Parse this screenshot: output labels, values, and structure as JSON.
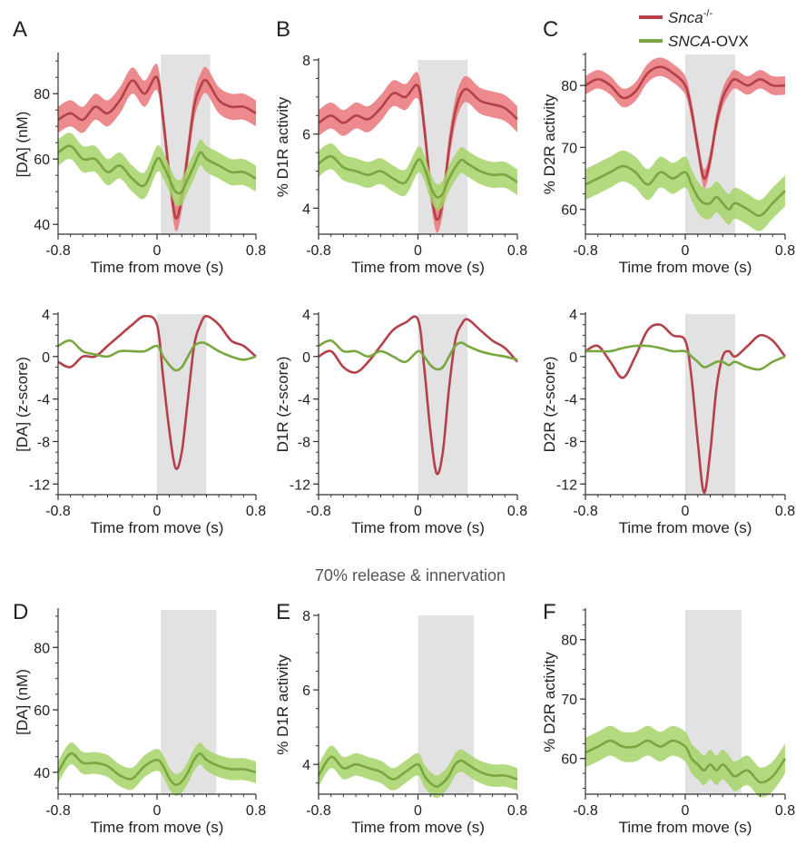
{
  "legend": {
    "items": [
      {
        "italic": "Snca",
        "sup": "-/-",
        "rest": "",
        "color": "#b4414a"
      },
      {
        "italic": "SNCA",
        "sup": "",
        "rest": "-OVX",
        "color": "#7aa640"
      }
    ]
  },
  "section_label": "70% release & innervation",
  "colors": {
    "red_line": "#b4414a",
    "red_band": "#e9767a",
    "green_line": "#7aa640",
    "green_band": "#a7d36a",
    "shade": "#e2e2e2"
  },
  "chart_data": [
    {
      "id": "A",
      "label": "A",
      "type": "line",
      "xlabel": "Time from move (s)",
      "ylabel": "[DA] (nM)",
      "xlim": [
        -0.8,
        0.8
      ],
      "ylim": [
        37,
        92
      ],
      "xticks": [
        -0.8,
        0,
        0.8
      ],
      "xtick_labels": [
        "-0.8",
        "0",
        "0.8"
      ],
      "yticks": [
        40,
        60,
        80
      ],
      "ytick_labels": [
        "40",
        "60",
        "80"
      ],
      "shade": [
        0.03,
        0.43
      ],
      "series": [
        {
          "color_key": "red",
          "band": 4,
          "x": [
            -0.8,
            -0.7,
            -0.6,
            -0.5,
            -0.4,
            -0.3,
            -0.2,
            -0.1,
            0,
            0.05,
            0.1,
            0.15,
            0.2,
            0.25,
            0.3,
            0.35,
            0.4,
            0.5,
            0.6,
            0.7,
            0.8
          ],
          "y": [
            72,
            74,
            72,
            76,
            74,
            78,
            84,
            80,
            85,
            72,
            55,
            42,
            48,
            62,
            76,
            82,
            84,
            78,
            76,
            76,
            74
          ]
        },
        {
          "color_key": "green",
          "band": 4,
          "x": [
            -0.8,
            -0.7,
            -0.6,
            -0.5,
            -0.4,
            -0.3,
            -0.2,
            -0.1,
            0,
            0.05,
            0.1,
            0.15,
            0.2,
            0.25,
            0.3,
            0.35,
            0.4,
            0.5,
            0.6,
            0.7,
            0.8
          ],
          "y": [
            62,
            64,
            60,
            60,
            56,
            58,
            54,
            52,
            60,
            58,
            54,
            50,
            50,
            54,
            58,
            62,
            60,
            58,
            56,
            56,
            54
          ]
        }
      ]
    },
    {
      "id": "B",
      "label": "B",
      "type": "line",
      "xlabel": "Time from move (s)",
      "ylabel": "% D1R activity",
      "xlim": [
        -0.8,
        0.8
      ],
      "ylim": [
        3.3,
        8
      ],
      "xticks": [
        -0.8,
        0,
        0.8
      ],
      "xtick_labels": [
        "-0.8",
        "0",
        "0.8"
      ],
      "yticks": [
        4,
        6,
        8
      ],
      "ytick_labels": [
        "4",
        "6",
        "8"
      ],
      "shade": [
        0,
        0.4
      ],
      "series": [
        {
          "color_key": "red",
          "band": 0.35,
          "x": [
            -0.8,
            -0.7,
            -0.6,
            -0.5,
            -0.4,
            -0.3,
            -0.2,
            -0.1,
            0,
            0.05,
            0.1,
            0.15,
            0.2,
            0.25,
            0.3,
            0.35,
            0.4,
            0.5,
            0.6,
            0.7,
            0.8
          ],
          "y": [
            6.3,
            6.5,
            6.3,
            6.5,
            6.4,
            6.7,
            7.1,
            7.0,
            7.3,
            6.2,
            4.6,
            3.7,
            4.2,
            5.6,
            6.6,
            7.1,
            7.2,
            6.9,
            6.8,
            6.7,
            6.4
          ]
        },
        {
          "color_key": "green",
          "band": 0.35,
          "x": [
            -0.8,
            -0.7,
            -0.6,
            -0.5,
            -0.4,
            -0.3,
            -0.2,
            -0.1,
            0,
            0.05,
            0.1,
            0.15,
            0.2,
            0.25,
            0.3,
            0.35,
            0.4,
            0.5,
            0.6,
            0.7,
            0.8
          ],
          "y": [
            5.2,
            5.4,
            5.1,
            5.0,
            4.9,
            5.0,
            4.8,
            4.7,
            5.3,
            5.1,
            4.6,
            4.3,
            4.4,
            4.8,
            5.1,
            5.3,
            5.2,
            5.0,
            4.9,
            4.9,
            4.7
          ]
        }
      ]
    },
    {
      "id": "C",
      "label": "C",
      "type": "line",
      "xlabel": "Time from move (s)",
      "ylabel": "% D2R activity",
      "xlim": [
        -0.8,
        0.8
      ],
      "ylim": [
        56,
        85
      ],
      "xticks": [
        -0.8,
        0,
        0.8
      ],
      "xtick_labels": [
        "-0.8",
        "0",
        "0.8"
      ],
      "yticks": [
        60,
        70,
        80
      ],
      "ytick_labels": [
        "60",
        "70",
        "80"
      ],
      "shade": [
        0,
        0.4
      ],
      "series": [
        {
          "color_key": "red",
          "band": 1.5,
          "x": [
            -0.8,
            -0.7,
            -0.6,
            -0.5,
            -0.4,
            -0.3,
            -0.2,
            -0.1,
            0,
            0.05,
            0.1,
            0.15,
            0.2,
            0.25,
            0.3,
            0.35,
            0.4,
            0.5,
            0.6,
            0.7,
            0.8
          ],
          "y": [
            80,
            81,
            80,
            78,
            79,
            82,
            83,
            82,
            80,
            76,
            70,
            65,
            68,
            74,
            78,
            80,
            81,
            80,
            81,
            80,
            80
          ]
        },
        {
          "color_key": "green",
          "band": 2.5,
          "x": [
            -0.8,
            -0.7,
            -0.6,
            -0.5,
            -0.4,
            -0.3,
            -0.2,
            -0.1,
            0,
            0.05,
            0.1,
            0.15,
            0.2,
            0.25,
            0.3,
            0.35,
            0.4,
            0.5,
            0.6,
            0.7,
            0.8
          ],
          "y": [
            64,
            65,
            66,
            67,
            66,
            64,
            66,
            65,
            66,
            64,
            62,
            61,
            61,
            62,
            61,
            60,
            61,
            60,
            59,
            61,
            63
          ]
        }
      ]
    },
    {
      "id": "A2",
      "label": "",
      "type": "line",
      "xlabel": "Time from move (s)",
      "ylabel": "[DA] (z-score)",
      "xlim": [
        -0.8,
        0.8
      ],
      "ylim": [
        -13,
        4
      ],
      "xticks": [
        -0.8,
        0,
        0.8
      ],
      "xtick_labels": [
        "-0.8",
        "0",
        "0.8"
      ],
      "yticks": [
        -12,
        -8,
        -4,
        0,
        4
      ],
      "ytick_labels": [
        "-12",
        "-8",
        "-4",
        "0",
        "4"
      ],
      "shade": [
        0,
        0.4
      ],
      "series": [
        {
          "color_key": "red",
          "band": 0,
          "x": [
            -0.8,
            -0.7,
            -0.6,
            -0.5,
            -0.4,
            -0.3,
            -0.2,
            -0.1,
            0,
            0.05,
            0.1,
            0.15,
            0.2,
            0.25,
            0.3,
            0.35,
            0.4,
            0.5,
            0.6,
            0.7,
            0.8
          ],
          "y": [
            -0.5,
            -1.0,
            0.0,
            0.0,
            1.0,
            2.0,
            3.0,
            3.8,
            3.0,
            -2.0,
            -7.0,
            -10.5,
            -9.0,
            -4.0,
            1.0,
            3.0,
            3.8,
            3.0,
            1.5,
            1.0,
            0.0
          ]
        },
        {
          "color_key": "green",
          "band": 0,
          "x": [
            -0.8,
            -0.7,
            -0.6,
            -0.5,
            -0.4,
            -0.3,
            -0.2,
            -0.1,
            0,
            0.05,
            0.1,
            0.15,
            0.2,
            0.25,
            0.3,
            0.35,
            0.4,
            0.5,
            0.6,
            0.7,
            0.8
          ],
          "y": [
            1.0,
            1.5,
            0.5,
            0.2,
            0.0,
            0.5,
            0.5,
            0.5,
            1.0,
            0.0,
            -0.8,
            -1.3,
            -1.0,
            0.0,
            1.0,
            1.3,
            1.2,
            0.5,
            0.0,
            -0.3,
            0.0
          ]
        }
      ]
    },
    {
      "id": "B2",
      "label": "",
      "type": "line",
      "xlabel": "Time from move (s)",
      "ylabel": "D1R (z-score)",
      "xlim": [
        -0.8,
        0.8
      ],
      "ylim": [
        -13,
        4
      ],
      "xticks": [
        -0.8,
        0,
        0.8
      ],
      "xtick_labels": [
        "-0.8",
        "0",
        "0.8"
      ],
      "yticks": [
        -12,
        -8,
        -4,
        0,
        4
      ],
      "ytick_labels": [
        "-12",
        "-8",
        "-4",
        "0",
        "4"
      ],
      "shade": [
        0,
        0.4
      ],
      "series": [
        {
          "color_key": "red",
          "band": 0,
          "x": [
            -0.8,
            -0.7,
            -0.6,
            -0.5,
            -0.4,
            -0.3,
            -0.2,
            -0.1,
            0,
            0.05,
            0.1,
            0.15,
            0.2,
            0.25,
            0.3,
            0.35,
            0.4,
            0.5,
            0.6,
            0.7,
            0.8
          ],
          "y": [
            0.0,
            0.5,
            -1.0,
            -1.5,
            -0.5,
            1.0,
            2.5,
            3.2,
            3.5,
            -1.0,
            -7.0,
            -11.0,
            -9.0,
            -3.0,
            1.5,
            3.0,
            3.5,
            2.5,
            1.5,
            0.8,
            -0.5
          ]
        },
        {
          "color_key": "green",
          "band": 0,
          "x": [
            -0.8,
            -0.7,
            -0.6,
            -0.5,
            -0.4,
            -0.3,
            -0.2,
            -0.1,
            0,
            0.05,
            0.1,
            0.15,
            0.2,
            0.25,
            0.3,
            0.35,
            0.4,
            0.5,
            0.6,
            0.7,
            0.8
          ],
          "y": [
            1.0,
            1.5,
            0.5,
            0.5,
            0.0,
            0.5,
            0.0,
            -0.5,
            0.5,
            0.0,
            -0.8,
            -1.2,
            -1.0,
            0.0,
            1.0,
            1.3,
            1.0,
            0.5,
            0.2,
            0.0,
            -0.3
          ]
        }
      ]
    },
    {
      "id": "C2",
      "label": "",
      "type": "line",
      "xlabel": "Time from move (s)",
      "ylabel": "D2R (z-score)",
      "xlim": [
        -0.8,
        0.8
      ],
      "ylim": [
        -13,
        4
      ],
      "xticks": [
        -0.8,
        0,
        0.8
      ],
      "xtick_labels": [
        "-0.8",
        "0",
        "0.8"
      ],
      "yticks": [
        -12,
        -8,
        -4,
        0,
        4
      ],
      "ytick_labels": [
        "-12",
        "-8",
        "-4",
        "0",
        "4"
      ],
      "shade": [
        0,
        0.4
      ],
      "series": [
        {
          "color_key": "red",
          "band": 0,
          "x": [
            -0.8,
            -0.7,
            -0.6,
            -0.5,
            -0.4,
            -0.3,
            -0.2,
            -0.1,
            0,
            0.05,
            0.1,
            0.15,
            0.2,
            0.25,
            0.3,
            0.35,
            0.4,
            0.5,
            0.6,
            0.7,
            0.8
          ],
          "y": [
            0.5,
            1.0,
            -0.5,
            -2.0,
            0.0,
            2.5,
            3.0,
            2.0,
            1.5,
            -2.0,
            -8.0,
            -12.8,
            -9.0,
            -3.0,
            0.0,
            0.5,
            0.0,
            1.0,
            2.0,
            1.5,
            0.0
          ]
        },
        {
          "color_key": "green",
          "band": 0,
          "x": [
            -0.8,
            -0.7,
            -0.6,
            -0.5,
            -0.4,
            -0.3,
            -0.2,
            -0.1,
            0,
            0.05,
            0.1,
            0.15,
            0.2,
            0.25,
            0.3,
            0.35,
            0.4,
            0.5,
            0.6,
            0.7,
            0.8
          ],
          "y": [
            0.5,
            0.5,
            0.5,
            0.8,
            1.0,
            1.0,
            0.8,
            0.5,
            0.5,
            0.0,
            -0.5,
            -1.0,
            -0.8,
            -0.5,
            -0.5,
            -0.8,
            -0.5,
            -1.0,
            -1.2,
            -0.5,
            0.0
          ]
        }
      ]
    },
    {
      "id": "D",
      "label": "D",
      "type": "line",
      "xlabel": "Time from move (s)",
      "ylabel": "[DA] (nM)",
      "xlim": [
        -0.8,
        0.8
      ],
      "ylim": [
        33,
        92
      ],
      "xticks": [
        -0.8,
        0,
        0.8
      ],
      "xtick_labels": [
        "-0.8",
        "0",
        "0.8"
      ],
      "yticks": [
        40,
        60,
        80
      ],
      "ytick_labels": [
        "40",
        "60",
        "80"
      ],
      "shade": [
        0.03,
        0.48
      ],
      "series": [
        {
          "color_key": "green",
          "band": 3.5,
          "x": [
            -0.8,
            -0.7,
            -0.6,
            -0.5,
            -0.4,
            -0.3,
            -0.2,
            -0.1,
            0,
            0.05,
            0.1,
            0.15,
            0.2,
            0.25,
            0.3,
            0.35,
            0.4,
            0.5,
            0.6,
            0.7,
            0.8
          ],
          "y": [
            40,
            46,
            43,
            43,
            42,
            39,
            38,
            42,
            44,
            42,
            38,
            36,
            37,
            40,
            44,
            46,
            44,
            42,
            41,
            41,
            40
          ]
        }
      ]
    },
    {
      "id": "E",
      "label": "E",
      "type": "line",
      "xlabel": "Time from move (s)",
      "ylabel": "% D1R activity",
      "xlim": [
        -0.8,
        0.8
      ],
      "ylim": [
        3.2,
        8
      ],
      "xticks": [
        -0.8,
        0,
        0.8
      ],
      "xtick_labels": [
        "-0.8",
        "0",
        "0.8"
      ],
      "yticks": [
        4,
        6,
        8
      ],
      "ytick_labels": [
        "4",
        "6",
        "8"
      ],
      "shade": [
        0,
        0.45
      ],
      "series": [
        {
          "color_key": "green",
          "band": 0.3,
          "x": [
            -0.8,
            -0.7,
            -0.6,
            -0.5,
            -0.4,
            -0.3,
            -0.2,
            -0.1,
            0,
            0.05,
            0.1,
            0.15,
            0.2,
            0.25,
            0.3,
            0.35,
            0.4,
            0.5,
            0.6,
            0.7,
            0.8
          ],
          "y": [
            3.7,
            4.2,
            3.9,
            4.0,
            3.9,
            3.8,
            3.6,
            3.8,
            4.0,
            3.7,
            3.5,
            3.4,
            3.5,
            3.7,
            4.0,
            4.1,
            4.0,
            3.8,
            3.7,
            3.7,
            3.6
          ]
        }
      ]
    },
    {
      "id": "F",
      "label": "F",
      "type": "line",
      "xlabel": "Time from move (s)",
      "ylabel": "% D2R activity",
      "xlim": [
        -0.8,
        0.8
      ],
      "ylim": [
        54,
        85
      ],
      "xticks": [
        -0.8,
        0,
        0.8
      ],
      "xtick_labels": [
        "-0.8",
        "0",
        "0.8"
      ],
      "yticks": [
        60,
        70,
        80
      ],
      "ytick_labels": [
        "60",
        "70",
        "80"
      ],
      "shade": [
        0,
        0.45
      ],
      "series": [
        {
          "color_key": "green",
          "band": 2.5,
          "x": [
            -0.8,
            -0.7,
            -0.6,
            -0.5,
            -0.4,
            -0.3,
            -0.2,
            -0.1,
            0,
            0.05,
            0.1,
            0.15,
            0.2,
            0.25,
            0.3,
            0.35,
            0.4,
            0.5,
            0.6,
            0.7,
            0.8
          ],
          "y": [
            61,
            62,
            63,
            62,
            62,
            63,
            62,
            63,
            62,
            60,
            59,
            58,
            59,
            58,
            59,
            58,
            57,
            58,
            56,
            57,
            60
          ]
        }
      ]
    }
  ]
}
